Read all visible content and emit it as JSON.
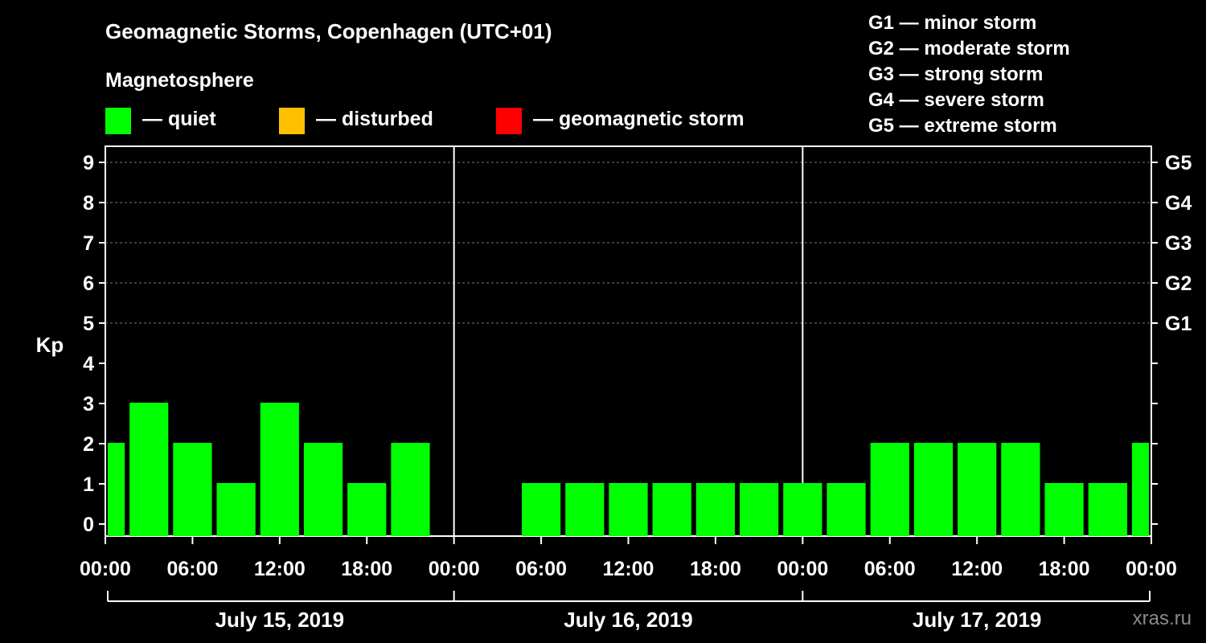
{
  "chart_data": {
    "type": "bar",
    "title": "Geomagnetic Storms, Copenhagen (UTC+01)",
    "subtitle": "Magnetosphere",
    "ylabel": "Kp",
    "ylim": [
      0,
      9
    ],
    "y_ticks": [
      "0",
      "1",
      "2",
      "3",
      "4",
      "5",
      "6",
      "7",
      "8",
      "9"
    ],
    "right_ticks": [
      {
        "kp": 5,
        "label": "G1"
      },
      {
        "kp": 6,
        "label": "G2"
      },
      {
        "kp": 7,
        "label": "G3"
      },
      {
        "kp": 8,
        "label": "G4"
      },
      {
        "kp": 9,
        "label": "G5"
      }
    ],
    "x_ticks": [
      "00:00",
      "06:00",
      "12:00",
      "18:00",
      "00:00",
      "06:00",
      "12:00",
      "18:00",
      "00:00",
      "06:00",
      "12:00",
      "18:00",
      "00:00"
    ],
    "days": [
      "July 15, 2019",
      "July 16, 2019",
      "July 17, 2019"
    ],
    "interval_hours": 3,
    "values": [
      2,
      3,
      2,
      1,
      3,
      2,
      1,
      2,
      0,
      0,
      1,
      1,
      1,
      1,
      1,
      1,
      1,
      1,
      2,
      2,
      2,
      2,
      1,
      1,
      2
    ],
    "grid": "dashed at Kp 5–9"
  },
  "legend": {
    "items": [
      {
        "label": "— quiet",
        "color": "#00ff00"
      },
      {
        "label": "— disturbed",
        "color": "#ffc000"
      },
      {
        "label": "— geomagnetic storm",
        "color": "#ff0000"
      }
    ]
  },
  "storm_scale": [
    "G1 — minor storm",
    "G2 — moderate storm",
    "G3 — strong storm",
    "G4 — severe storm",
    "G5 — extreme storm"
  ],
  "watermark": "xras.ru"
}
